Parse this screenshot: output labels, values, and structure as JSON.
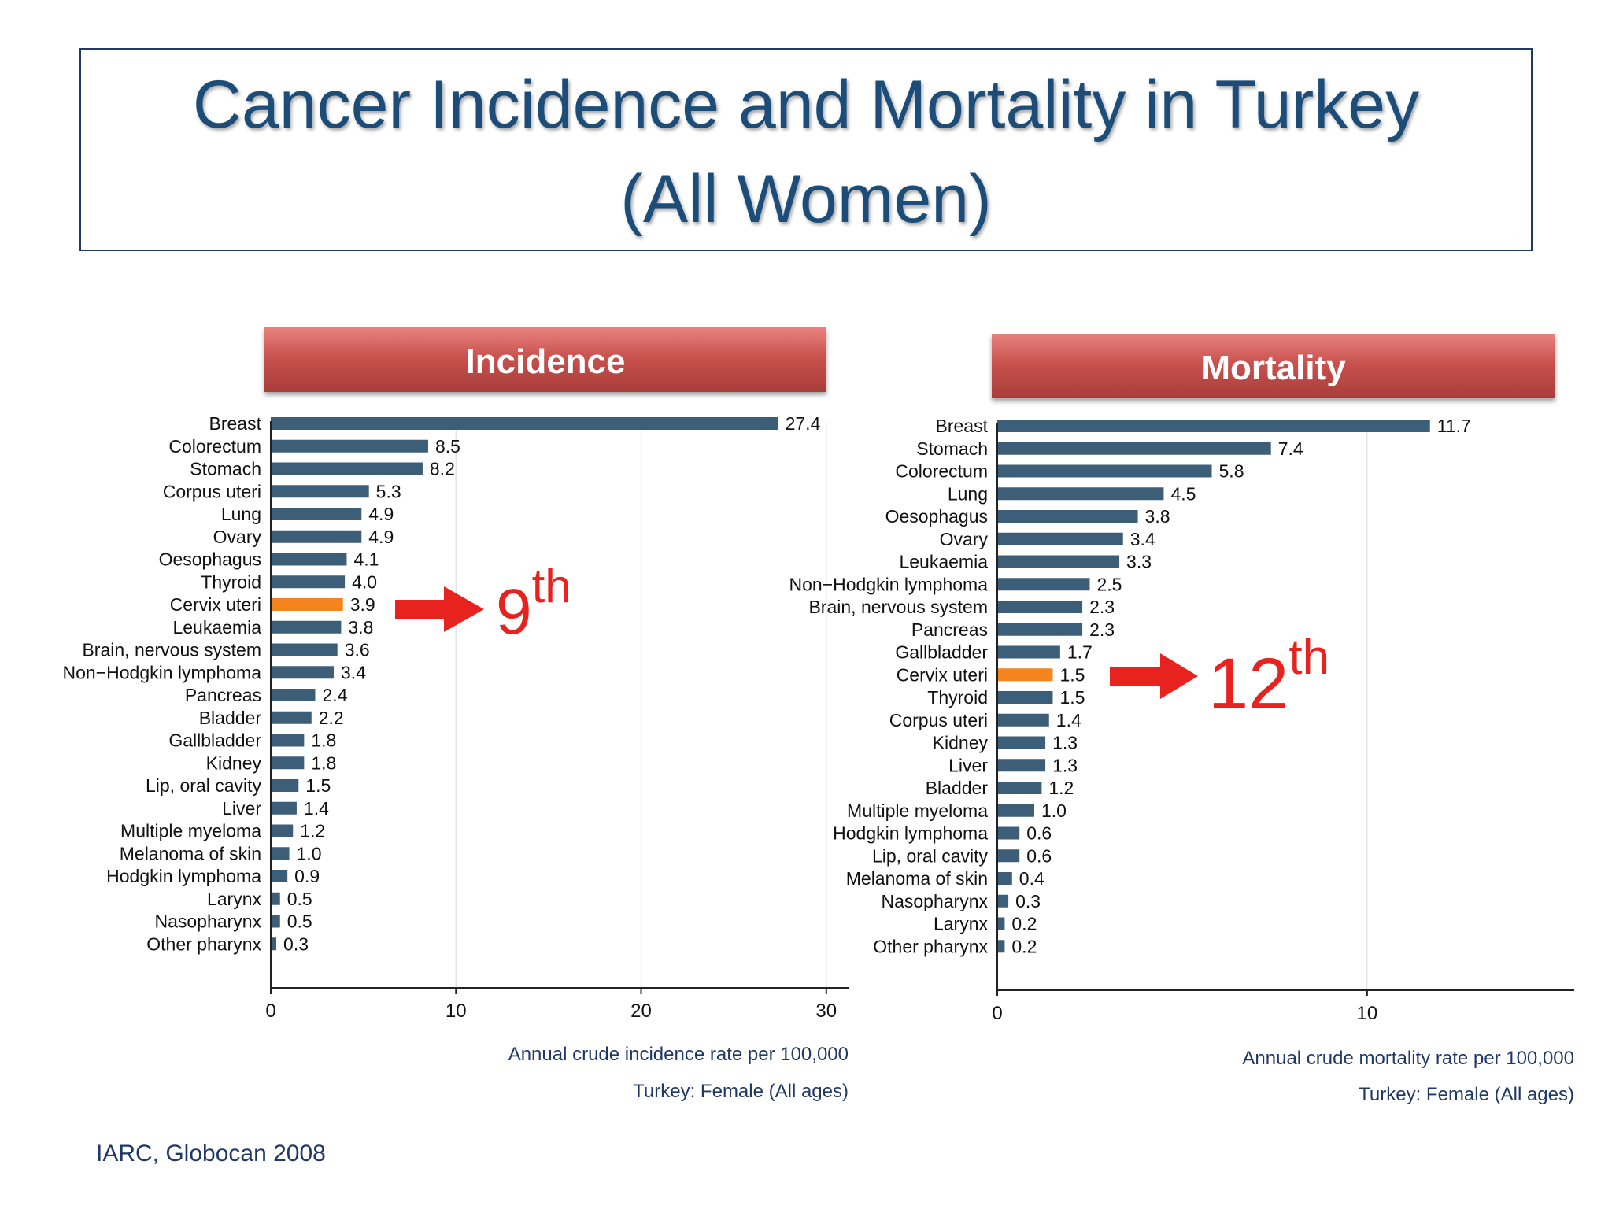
{
  "slide": {
    "title_line1": "Cancer Incidence and Mortality in Turkey",
    "title_line2": "(All Women)",
    "source": "IARC, Globocan 2008"
  },
  "colors": {
    "title": "#1f4e79",
    "bar": "#3d5e78",
    "highlight": "#f5841f",
    "banner": "#c0504d",
    "banner_light": "#e37b78",
    "annotation": "#e8231f",
    "frame": "#1f3864",
    "caption": "#1f3864"
  },
  "chart_data": [
    {
      "type": "bar",
      "orientation": "horizontal",
      "banner": "Incidence",
      "categories": [
        "Breast",
        "Colorectum",
        "Stomach",
        "Corpus uteri",
        "Lung",
        "Ovary",
        "Oesophagus",
        "Thyroid",
        "Cervix uteri",
        "Leukaemia",
        "Brain, nervous system",
        "Non−Hodgkin lymphoma",
        "Pancreas",
        "Bladder",
        "Gallbladder",
        "Kidney",
        "Lip, oral cavity",
        "Liver",
        "Multiple myeloma",
        "Melanoma of skin",
        "Hodgkin lymphoma",
        "Larynx",
        "Nasopharynx",
        "Other pharynx"
      ],
      "values": [
        27.4,
        8.5,
        8.2,
        5.3,
        4.9,
        4.9,
        4.1,
        4.0,
        3.9,
        3.8,
        3.6,
        3.4,
        2.4,
        2.2,
        1.8,
        1.8,
        1.5,
        1.4,
        1.2,
        1.0,
        0.9,
        0.5,
        0.5,
        0.3
      ],
      "value_labels": [
        "27.4",
        "8.5",
        "8.2",
        "5.3",
        "4.9",
        "4.9",
        "4.1",
        "4.0",
        "3.9",
        "3.8",
        "3.6",
        "3.4",
        "2.4",
        "2.2",
        "1.8",
        "1.8",
        "1.5",
        "1.4",
        "1.2",
        "1.0",
        "0.9",
        "0.5",
        "0.5",
        "0.3"
      ],
      "highlight": "Cervix uteri",
      "xlim": [
        0,
        31.2
      ],
      "xticks": [
        0,
        10,
        20,
        30
      ],
      "xtick_labels": [
        "0",
        "10",
        "20",
        "30"
      ],
      "xlabel": "Annual crude incidence rate per 100,000",
      "note": "Turkey: Female (All ages)",
      "rank_label": "9",
      "rank_suffix": "th",
      "grid": true
    },
    {
      "type": "bar",
      "orientation": "horizontal",
      "banner": "Mortality",
      "categories": [
        "Breast",
        "Stomach",
        "Colorectum",
        "Lung",
        "Oesophagus",
        "Ovary",
        "Leukaemia",
        "Non−Hodgkin lymphoma",
        "Brain, nervous system",
        "Pancreas",
        "Gallbladder",
        "Cervix uteri",
        "Thyroid",
        "Corpus uteri",
        "Kidney",
        "Liver",
        "Bladder",
        "Multiple myeloma",
        "Hodgkin lymphoma",
        "Lip, oral cavity",
        "Melanoma of skin",
        "Nasopharynx",
        "Larynx",
        "Other pharynx"
      ],
      "values": [
        11.7,
        7.4,
        5.8,
        4.5,
        3.8,
        3.4,
        3.3,
        2.5,
        2.3,
        2.3,
        1.7,
        1.5,
        1.5,
        1.4,
        1.3,
        1.3,
        1.2,
        1.0,
        0.6,
        0.6,
        0.4,
        0.3,
        0.2,
        0.2
      ],
      "value_labels": [
        "11.7",
        "7.4",
        "5.8",
        "4.5",
        "3.8",
        "3.4",
        "3.3",
        "2.5",
        "2.3",
        "2.3",
        "1.7",
        "1.5",
        "1.5",
        "1.4",
        "1.3",
        "1.3",
        "1.2",
        "1.0",
        "0.6",
        "0.6",
        "0.4",
        "0.3",
        "0.2",
        "0.2"
      ],
      "highlight": "Cervix uteri",
      "xlim": [
        0,
        15.6
      ],
      "xticks": [
        0,
        10
      ],
      "xtick_labels": [
        "0",
        "10"
      ],
      "xlabel": "Annual crude mortality rate per 100,000",
      "note": "Turkey: Female (All ages)",
      "rank_label": "12",
      "rank_suffix": "th",
      "grid": true
    }
  ]
}
